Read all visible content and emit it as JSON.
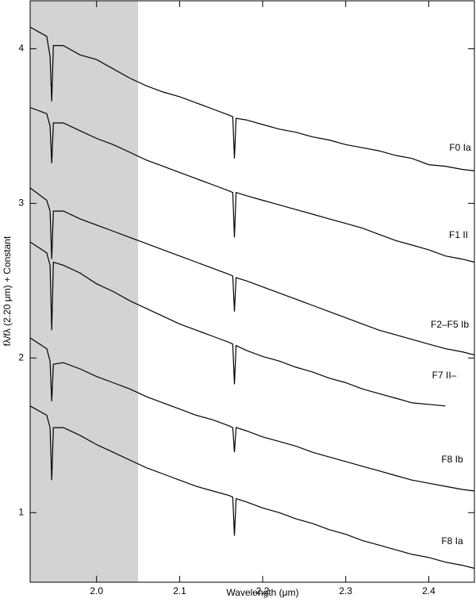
{
  "chart_data": {
    "type": "line",
    "xlabel": "Wavelength (μm)",
    "ylabel": "fλ/fλ (2.20 μm) + Constant",
    "xlim": [
      1.92,
      2.455
    ],
    "ylim": [
      0.55,
      4.31
    ],
    "xticks": [
      {
        "value": 2,
        "label": "2.0"
      },
      {
        "value": 2.1,
        "label": "2.1"
      },
      {
        "value": 2.2,
        "label": "2.2"
      },
      {
        "value": 2.3,
        "label": "2.3"
      },
      {
        "value": 2.4,
        "label": "2.4"
      }
    ],
    "yticks": [
      1,
      2,
      3,
      4
    ],
    "shaded_x_range": [
      1.92,
      2.05
    ],
    "shade_color": "#d3d3d3",
    "x": [
      1.92,
      1.94,
      1.944,
      1.946,
      1.948,
      1.96,
      1.98,
      2.0,
      2.02,
      2.04,
      2.06,
      2.08,
      2.1,
      2.12,
      2.14,
      2.16,
      2.164,
      2.166,
      2.168,
      2.18,
      2.2,
      2.22,
      2.24,
      2.26,
      2.28,
      2.3,
      2.32,
      2.34,
      2.36,
      2.38,
      2.4,
      2.42,
      2.44,
      2.455
    ],
    "series": [
      {
        "name": "F0 Ia",
        "color": "#000000",
        "values": [
          4.14,
          4.08,
          3.95,
          3.66,
          4.02,
          4.02,
          3.96,
          3.93,
          3.87,
          3.81,
          3.76,
          3.72,
          3.69,
          3.65,
          3.61,
          3.57,
          3.56,
          3.29,
          3.55,
          3.54,
          3.51,
          3.48,
          3.46,
          3.43,
          3.41,
          3.38,
          3.36,
          3.34,
          3.31,
          3.29,
          3.25,
          3.24,
          3.22,
          3.21
        ]
      },
      {
        "name": "F1 II",
        "color": "#000000",
        "values": [
          3.62,
          3.58,
          3.5,
          3.26,
          3.52,
          3.52,
          3.47,
          3.42,
          3.38,
          3.33,
          3.28,
          3.24,
          3.2,
          3.16,
          3.12,
          3.08,
          3.07,
          2.78,
          3.07,
          3.05,
          3.02,
          2.99,
          2.96,
          2.93,
          2.9,
          2.87,
          2.84,
          2.8,
          2.76,
          2.73,
          2.7,
          2.66,
          2.64,
          2.62
        ]
      },
      {
        "name": "F2–F5 Ib",
        "color": "#000000",
        "values": [
          3.1,
          3.02,
          2.95,
          2.64,
          2.95,
          2.95,
          2.9,
          2.86,
          2.82,
          2.78,
          2.74,
          2.7,
          2.66,
          2.62,
          2.58,
          2.54,
          2.53,
          2.3,
          2.52,
          2.5,
          2.46,
          2.42,
          2.38,
          2.34,
          2.3,
          2.26,
          2.22,
          2.18,
          2.15,
          2.12,
          2.09,
          2.06,
          2.04,
          2.02
        ]
      },
      {
        "name": "F7 II–",
        "color": "#000000",
        "values": [
          2.75,
          2.68,
          2.6,
          2.18,
          2.62,
          2.6,
          2.55,
          2.48,
          2.43,
          2.37,
          2.32,
          2.27,
          2.22,
          2.18,
          2.14,
          2.1,
          2.09,
          1.83,
          2.08,
          2.05,
          2.01,
          1.98,
          1.94,
          1.91,
          1.87,
          1.84,
          1.8,
          1.77,
          1.74,
          1.71,
          1.7,
          1.69,
          null,
          null
        ]
      },
      {
        "name": "F8 Ib",
        "color": "#000000",
        "values": [
          2.13,
          2.06,
          1.98,
          1.72,
          1.96,
          1.97,
          1.93,
          1.88,
          1.84,
          1.8,
          1.75,
          1.71,
          1.67,
          1.63,
          1.6,
          1.56,
          1.55,
          1.39,
          1.55,
          1.53,
          1.49,
          1.46,
          1.43,
          1.39,
          1.36,
          1.33,
          1.3,
          1.27,
          1.24,
          1.21,
          1.19,
          1.17,
          1.15,
          1.14
        ]
      },
      {
        "name": "F8 Ia",
        "color": "#000000",
        "values": [
          1.69,
          1.63,
          1.55,
          1.21,
          1.55,
          1.55,
          1.5,
          1.44,
          1.39,
          1.34,
          1.29,
          1.25,
          1.21,
          1.17,
          1.14,
          1.11,
          1.1,
          0.85,
          1.09,
          1.07,
          1.03,
          1.0,
          0.96,
          0.93,
          0.89,
          0.86,
          0.82,
          0.79,
          0.76,
          0.73,
          0.71,
          0.68,
          0.66,
          0.64
        ]
      }
    ]
  }
}
